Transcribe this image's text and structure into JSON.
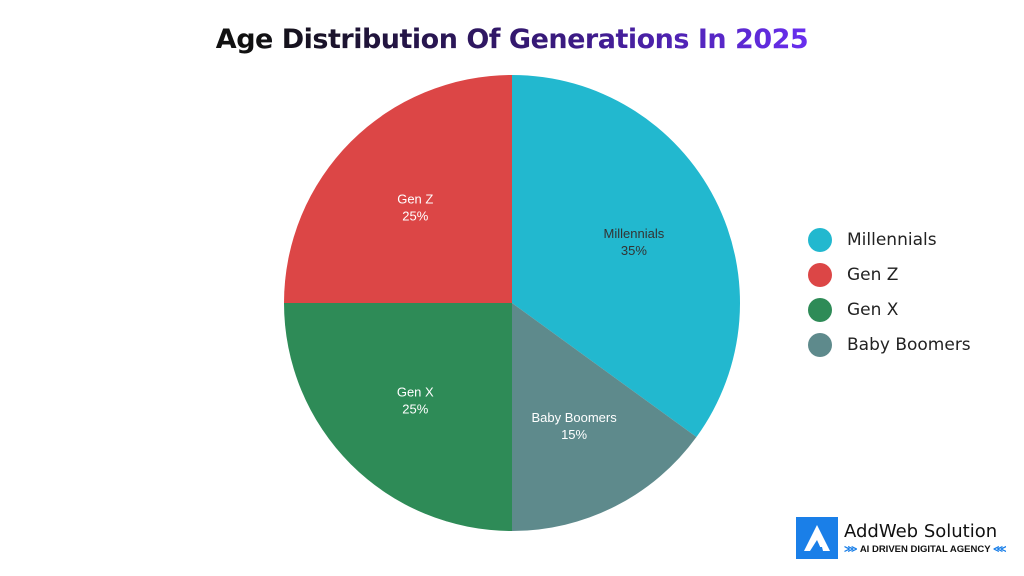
{
  "chart_data": {
    "type": "pie",
    "title": "Age Distribution Of Generations In 2025",
    "slices": [
      {
        "label": "Millennials",
        "value": 35,
        "display": "35%",
        "color": "#22b8cf",
        "text_color": "#333333"
      },
      {
        "label": "Baby Boomers",
        "value": 15,
        "display": "15%",
        "color": "#5e8a8c",
        "text_color": "#ffffff"
      },
      {
        "label": "Gen X",
        "value": 25,
        "display": "25%",
        "color": "#2e8b57",
        "text_color": "#ffffff"
      },
      {
        "label": "Gen Z",
        "value": 25,
        "display": "25%",
        "color": "#dc4646",
        "text_color": "#ffffff"
      }
    ],
    "legend": {
      "placement": "right",
      "items": [
        "Millennials",
        "Gen Z",
        "Gen X",
        "Baby Boomers"
      ]
    }
  },
  "logo": {
    "name": "AddWeb Solution",
    "tagline": "AI DRIVEN DIGITAL AGENCY"
  }
}
